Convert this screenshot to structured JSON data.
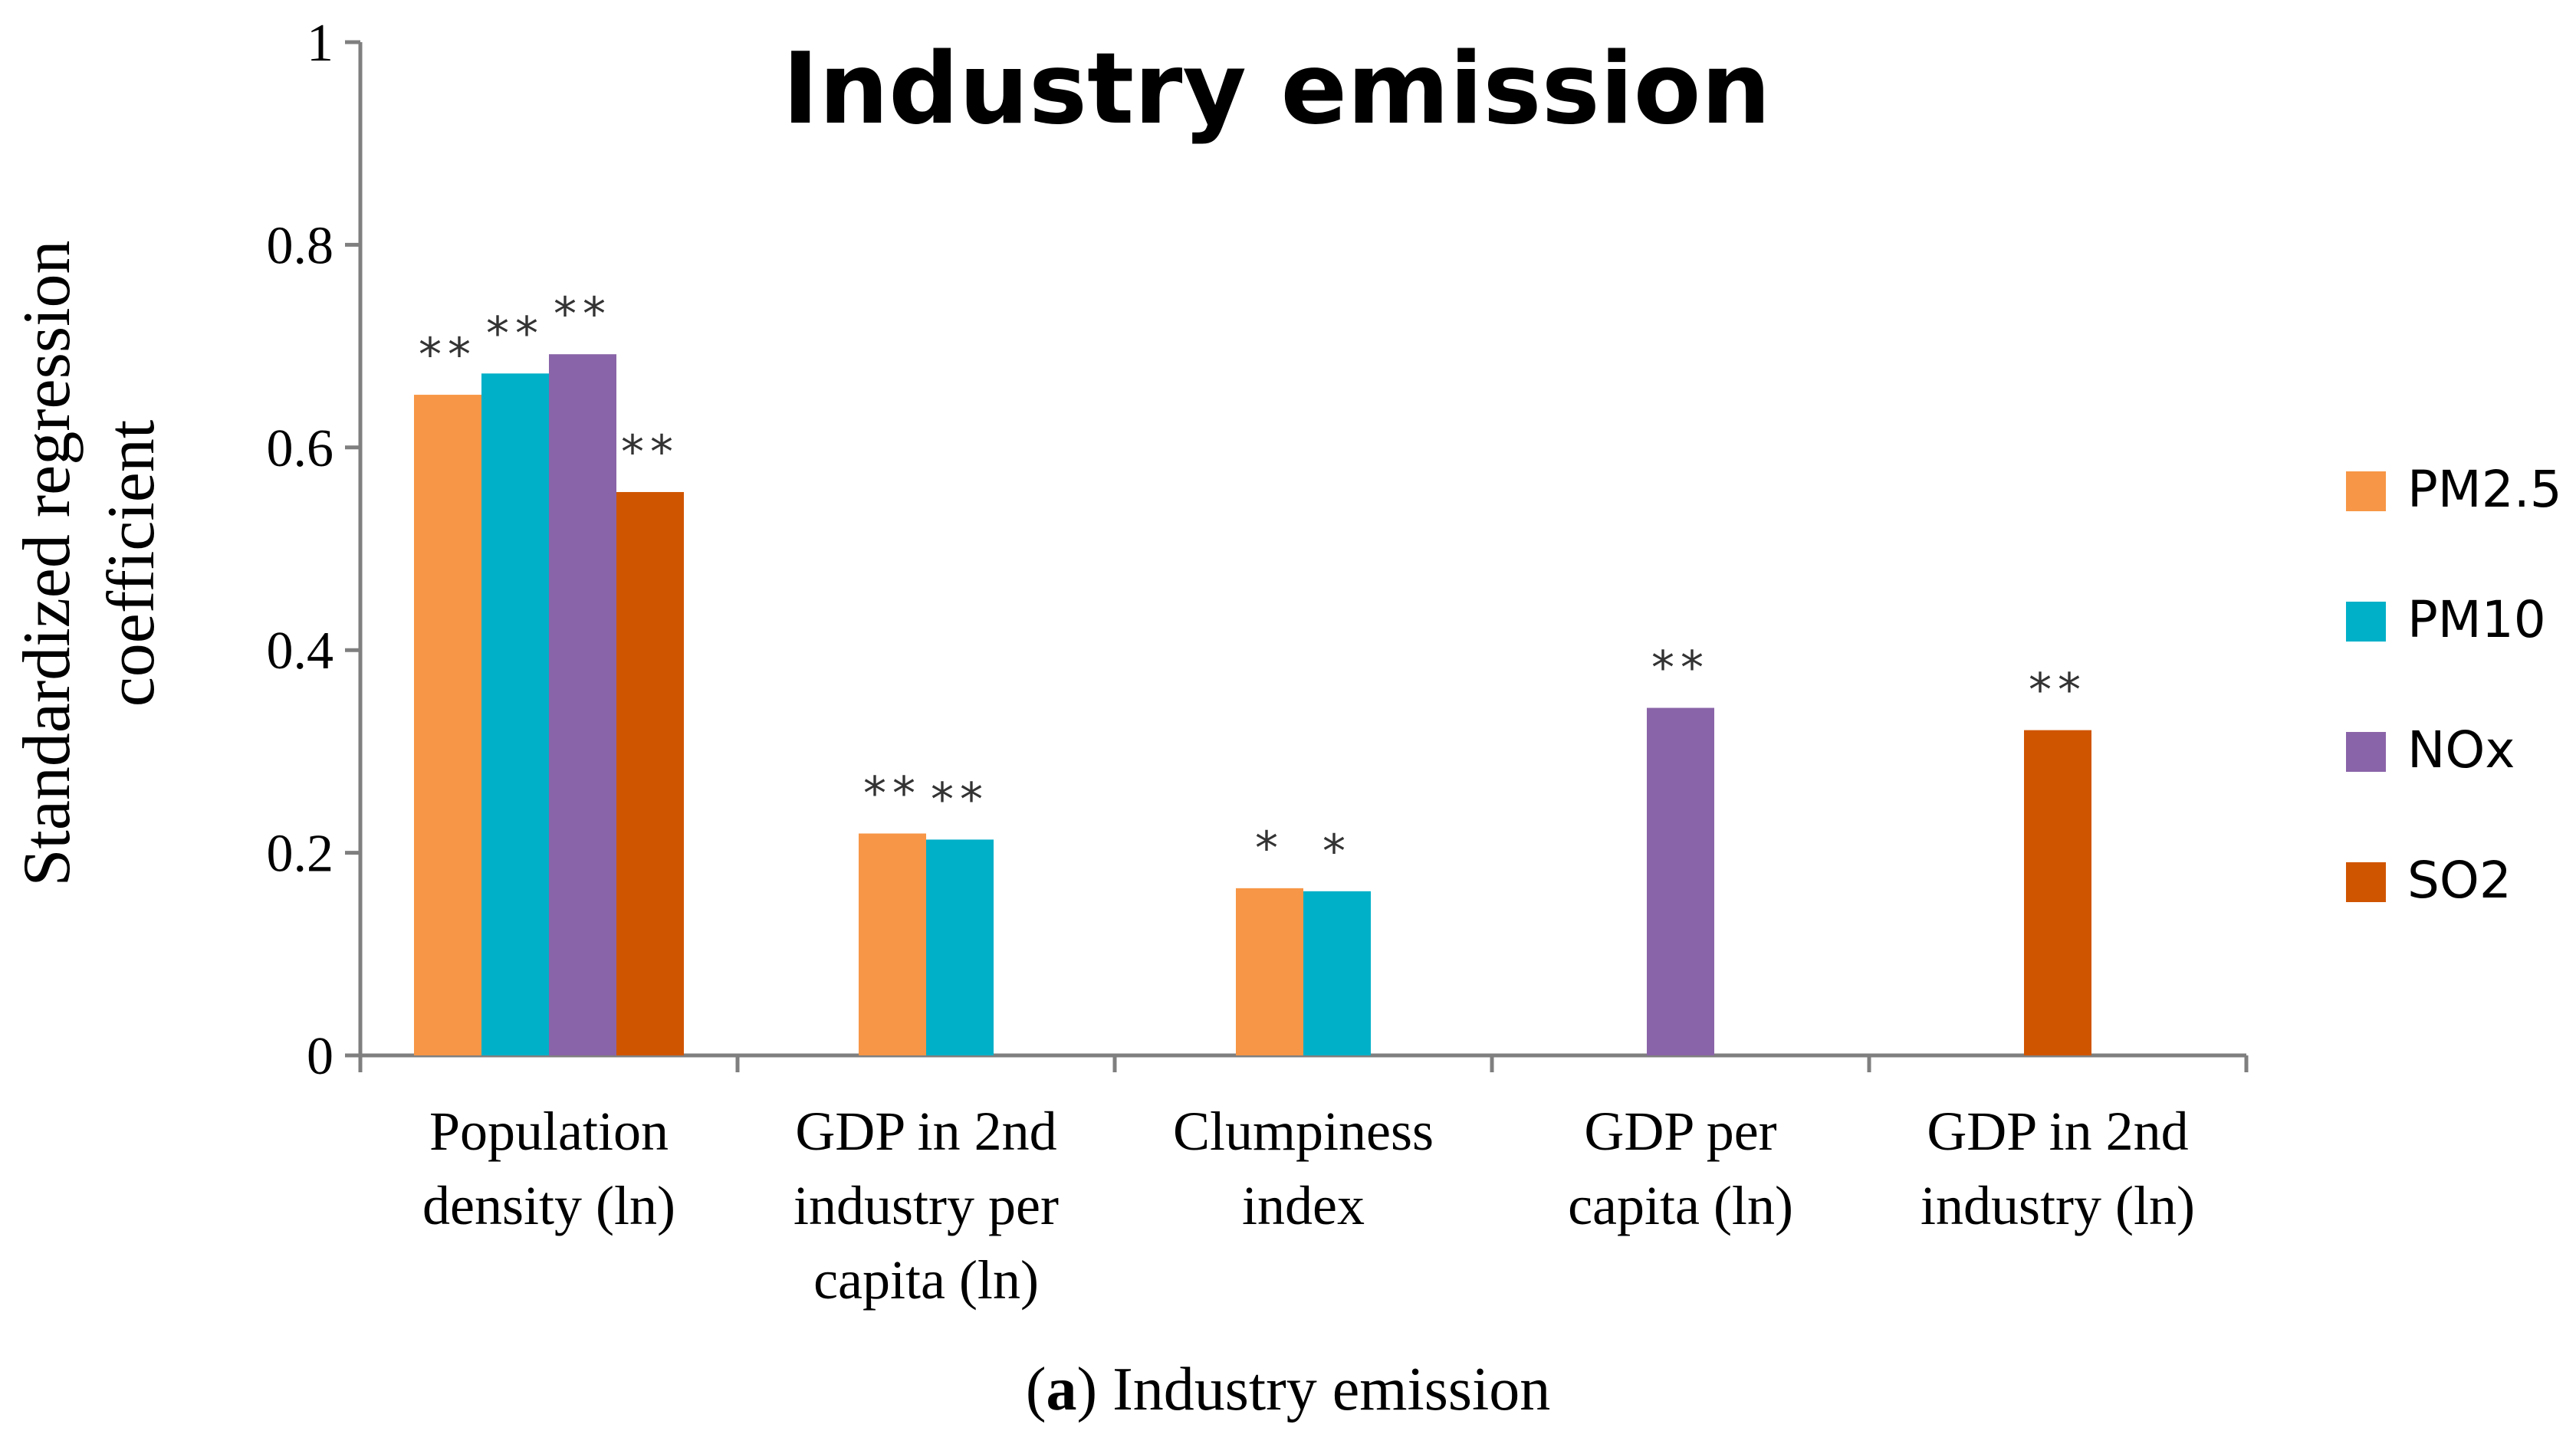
{
  "chart_data": {
    "type": "bar",
    "title": "Industry emission",
    "xlabel": "",
    "ylabel": "Standardized regression coefficient",
    "ylabel_lines": [
      "Standardized regression",
      "coefficient"
    ],
    "ylim": [
      0,
      1
    ],
    "yticks": [
      0,
      0.2,
      0.4,
      0.6,
      0.8,
      1
    ],
    "ytick_labels": [
      "0",
      "0.2",
      "0.4",
      "0.6",
      "0.8",
      "1"
    ],
    "grid": false,
    "legend_position": "right",
    "categories": [
      [
        "Population",
        "density (ln)"
      ],
      [
        "GDP in 2nd",
        "industry per",
        "capita (ln)"
      ],
      [
        "Clumpiness",
        "index"
      ],
      [
        "GDP per",
        "capita (ln)"
      ],
      [
        "GDP in 2nd",
        "industry (ln)"
      ]
    ],
    "series": [
      {
        "name": "PM2.5",
        "color": "#F79646",
        "values": [
          0.652,
          0.219,
          0.165,
          null,
          null
        ],
        "significance": [
          "**",
          "**",
          "*",
          "",
          ""
        ]
      },
      {
        "name": "PM10",
        "color": "#00B0C8",
        "values": [
          0.673,
          0.213,
          0.162,
          null,
          null
        ],
        "significance": [
          "**",
          "**",
          "*",
          "",
          ""
        ]
      },
      {
        "name": "NOx",
        "color": "#8A64A8",
        "values": [
          0.692,
          null,
          null,
          0.343,
          null
        ],
        "significance": [
          "**",
          "",
          "",
          "**",
          ""
        ]
      },
      {
        "name": "SO2",
        "color": "#D05500",
        "values": [
          0.556,
          null,
          null,
          null,
          0.321
        ],
        "significance": [
          "**",
          "",
          "",
          "",
          "**"
        ]
      }
    ]
  },
  "caption": {
    "label": "a",
    "text": "Industry emission"
  }
}
